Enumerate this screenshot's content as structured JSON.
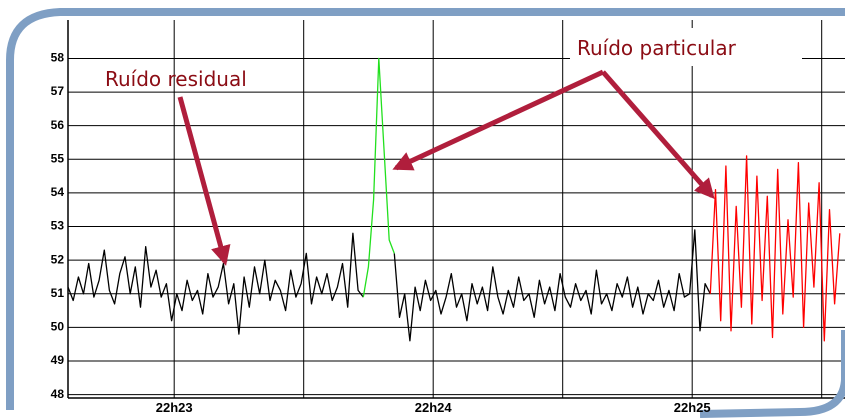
{
  "chart_data": {
    "type": "line",
    "ylim": [
      47.9,
      58.4
    ],
    "yticks": [
      48,
      49,
      50,
      51,
      52,
      53,
      54,
      55,
      56,
      57,
      58
    ],
    "xlim": [
      0,
      150
    ],
    "xticks": [
      {
        "value": 20.5,
        "label": "22h23"
      },
      {
        "value": 70.5,
        "label": "22h24"
      },
      {
        "value": 120.5,
        "label": "22h25"
      }
    ],
    "xminor": [
      45.5,
      95.5,
      145.5
    ],
    "grid": true,
    "annotations": [
      {
        "text": "Ruído residual"
      },
      {
        "text": "Ruído particular"
      }
    ],
    "series": [
      {
        "color": "#000000",
        "values": [
          51.2,
          50.8,
          51.5,
          51.0,
          51.9,
          50.9,
          51.4,
          52.3,
          51.1,
          50.7,
          51.6,
          52.1,
          51.0,
          51.8,
          50.6,
          52.4,
          51.2,
          51.7,
          50.9,
          51.3,
          50.2,
          51.0,
          50.5,
          51.4,
          50.8,
          51.1,
          50.4,
          51.6,
          50.9,
          51.2,
          51.9,
          50.7,
          51.3,
          49.8,
          51.5,
          50.6,
          51.8,
          51.0,
          52.0,
          50.8,
          51.4,
          51.1,
          50.5,
          51.7,
          50.9,
          51.3,
          52.2,
          50.7,
          51.5,
          51.0,
          51.6,
          50.8,
          51.2,
          51.9,
          50.6,
          52.8,
          51.1,
          50.9,
          null,
          null,
          null,
          null,
          null,
          52.2,
          50.3,
          51.0,
          49.6,
          51.2,
          50.5,
          51.4,
          50.8,
          51.1,
          50.4,
          50.9,
          51.6,
          50.6,
          51.0,
          50.2,
          51.3,
          50.7,
          51.2,
          50.5,
          51.8,
          50.9,
          50.4,
          51.1,
          50.6,
          51.5,
          50.8,
          51.0,
          50.3,
          51.4,
          50.7,
          51.2,
          50.5,
          51.6,
          50.9,
          50.6,
          51.3,
          50.8,
          51.1,
          50.4,
          51.7,
          50.7,
          51.0,
          50.5,
          51.3,
          50.9,
          51.5,
          50.6,
          51.2,
          50.4,
          51.0,
          50.8,
          51.4,
          50.6,
          51.1,
          50.5,
          51.6,
          50.9,
          51.0,
          52.9,
          49.9,
          51.3,
          51.0,
          null,
          null,
          null,
          null,
          null,
          null,
          null,
          null,
          null,
          null,
          null,
          null,
          null,
          null,
          null,
          null,
          null,
          null,
          null,
          null,
          null,
          null,
          null,
          null,
          null
        ]
      },
      {
        "color": "#22e01e",
        "values": [
          null,
          null,
          null,
          null,
          null,
          null,
          null,
          null,
          null,
          null,
          null,
          null,
          null,
          null,
          null,
          null,
          null,
          null,
          null,
          null,
          null,
          null,
          null,
          null,
          null,
          null,
          null,
          null,
          null,
          null,
          null,
          null,
          null,
          null,
          null,
          null,
          null,
          null,
          null,
          null,
          null,
          null,
          null,
          null,
          null,
          null,
          null,
          null,
          null,
          null,
          null,
          null,
          null,
          null,
          null,
          null,
          null,
          50.9,
          51.8,
          53.8,
          58.0,
          55.3,
          52.6,
          52.2,
          null,
          null,
          null,
          null,
          null,
          null,
          null,
          null,
          null,
          null,
          null,
          null,
          null,
          null,
          null,
          null,
          null,
          null,
          null,
          null,
          null,
          null,
          null,
          null,
          null,
          null,
          null,
          null,
          null,
          null,
          null,
          null,
          null,
          null,
          null,
          null,
          null,
          null,
          null,
          null,
          null,
          null,
          null,
          null,
          null,
          null,
          null,
          null,
          null,
          null,
          null,
          null,
          null,
          null,
          null,
          null,
          null,
          null,
          null,
          null,
          null,
          null,
          null,
          null,
          null,
          null,
          null,
          null,
          null,
          null,
          null,
          null,
          null,
          null,
          null,
          null,
          null,
          null,
          null,
          null,
          null,
          null,
          null,
          null,
          null,
          null
        ]
      },
      {
        "color": "#ff0000",
        "values": [
          null,
          null,
          null,
          null,
          null,
          null,
          null,
          null,
          null,
          null,
          null,
          null,
          null,
          null,
          null,
          null,
          null,
          null,
          null,
          null,
          null,
          null,
          null,
          null,
          null,
          null,
          null,
          null,
          null,
          null,
          null,
          null,
          null,
          null,
          null,
          null,
          null,
          null,
          null,
          null,
          null,
          null,
          null,
          null,
          null,
          null,
          null,
          null,
          null,
          null,
          null,
          null,
          null,
          null,
          null,
          null,
          null,
          null,
          null,
          null,
          null,
          null,
          null,
          null,
          null,
          null,
          null,
          null,
          null,
          null,
          null,
          null,
          null,
          null,
          null,
          null,
          null,
          null,
          null,
          null,
          null,
          null,
          null,
          null,
          null,
          null,
          null,
          null,
          null,
          null,
          null,
          null,
          null,
          null,
          null,
          null,
          null,
          null,
          null,
          null,
          null,
          null,
          null,
          null,
          null,
          null,
          null,
          null,
          null,
          null,
          null,
          null,
          null,
          null,
          null,
          null,
          null,
          null,
          null,
          null,
          null,
          null,
          null,
          null,
          51.0,
          54.1,
          50.2,
          54.8,
          49.9,
          53.6,
          50.6,
          55.1,
          50.1,
          54.5,
          50.8,
          53.9,
          49.7,
          54.7,
          50.4,
          53.2,
          50.9,
          54.9,
          50.0,
          53.7,
          51.2,
          54.3,
          49.6,
          53.5,
          50.7,
          52.8
        ]
      }
    ]
  }
}
